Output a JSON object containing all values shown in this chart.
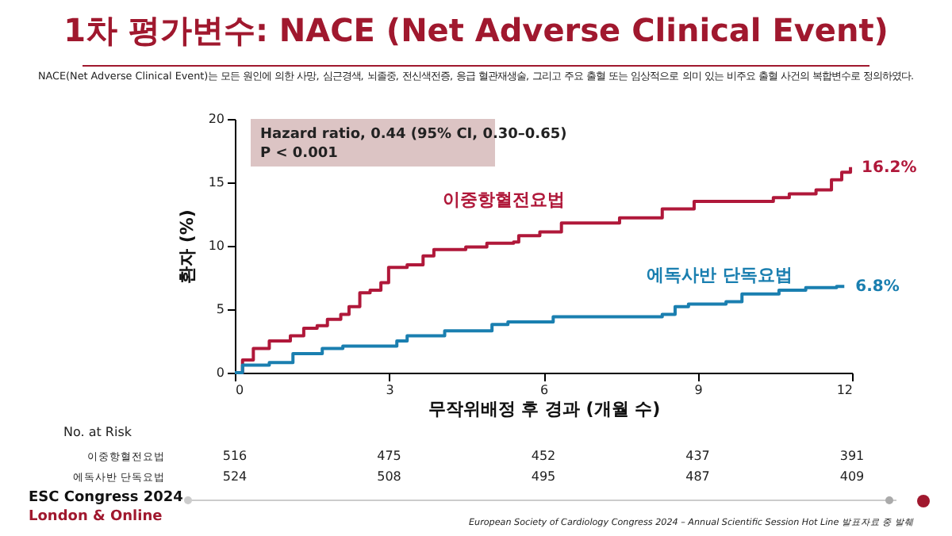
{
  "chart_data": {
    "type": "step",
    "title": "1차 평가변수: NACE (Net Adverse Clinical Event)",
    "subtitle": "NACE(Net Adverse Clinical Event)는 모든 원인에 의한 사망, 심근경색, 뇌졸중, 전신색전증, 응급 혈관재생술, 그리고 주요 출혈 또는 임상적으로 의미 있는 비주요 출혈 사건의 복합변수로 정의하였다.",
    "xlabel": "무작위배정 후 경과 (개월 수)",
    "ylabel": "환자 (%)",
    "xlim": [
      0,
      12
    ],
    "xticks": [
      0,
      3,
      6,
      9,
      12
    ],
    "ylim": [
      0,
      20
    ],
    "yticks": [
      0,
      5,
      10,
      15,
      20
    ],
    "grid": false,
    "legend": false,
    "series": [
      {
        "name": "이중항혈전요법",
        "color": "#b0183a",
        "x": [
          0,
          0.15,
          0.36,
          0.67,
          1.08,
          1.34,
          1.6,
          1.8,
          2.06,
          2.22,
          2.43,
          2.63,
          2.84,
          2.99,
          3.35,
          3.66,
          3.87,
          4.49,
          4.9,
          5.42,
          5.52,
          5.93,
          6.35,
          7.48,
          8.31,
          8.93,
          10.47,
          10.78,
          11.3,
          11.6,
          11.8,
          11.97
        ],
        "values": [
          0,
          1.0,
          1.9,
          2.5,
          2.9,
          3.5,
          3.7,
          4.2,
          4.6,
          5.2,
          6.3,
          6.5,
          7.1,
          8.3,
          8.5,
          9.2,
          9.7,
          9.9,
          10.2,
          10.3,
          10.8,
          11.1,
          11.8,
          12.2,
          12.9,
          13.5,
          13.8,
          14.1,
          14.4,
          15.2,
          15.8,
          16.2
        ]
      },
      {
        "name": "에독사반 단독요법",
        "color": "#1a7fb0",
        "x": [
          0,
          0.15,
          0.67,
          1.13,
          1.7,
          2.1,
          3.15,
          3.35,
          4.08,
          5.0,
          5.31,
          6.19,
          8.31,
          8.56,
          8.82,
          9.55,
          9.86,
          10.58,
          11.1,
          11.7,
          11.85
        ],
        "values": [
          0,
          0.6,
          0.8,
          1.5,
          1.9,
          2.1,
          2.5,
          2.9,
          3.3,
          3.8,
          4.0,
          4.4,
          4.6,
          5.2,
          5.4,
          5.6,
          6.2,
          6.5,
          6.7,
          6.8,
          6.8
        ]
      }
    ],
    "annotations": [
      {
        "text": "16.2%",
        "x": 11.97,
        "y": 16.2
      },
      {
        "text": "6.8%",
        "x": 11.85,
        "y": 6.8
      },
      "Hazard ratio, 0.44 (95% CI, 0.30–0.65)",
      "P < 0.001",
      "No. at Risk",
      "이중항혈전요법",
      "516",
      "475",
      "452",
      "437",
      "391",
      "에독사반 단독요법",
      "524",
      "508",
      "495",
      "487",
      "409",
      "ESC Congress 2024",
      "London & Online",
      "European Society of Cardiology Congress 2024 – Annual Scientific Session Hot Line 발표자료 중 발췌"
    ]
  }
}
